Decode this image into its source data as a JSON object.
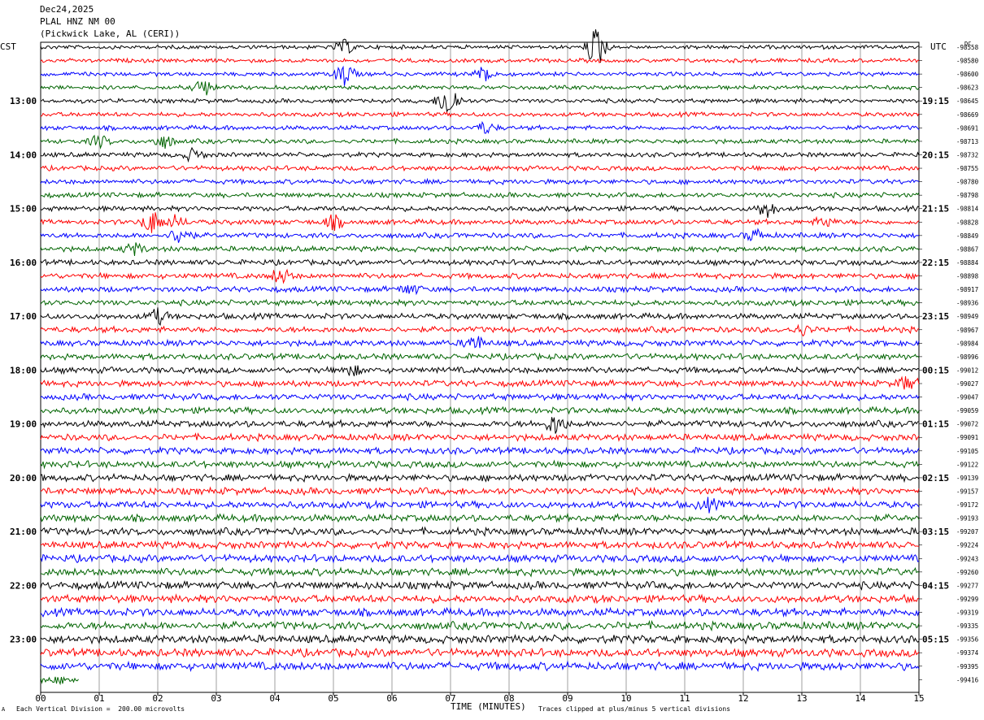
{
  "header": {
    "date": "Dec24,2025",
    "station": "PLAL HNZ NM 00",
    "location": "(Pickwick Lake, AL (CERI))"
  },
  "left_tz": "CST",
  "right_tz": "UTC",
  "right_unit": "DC",
  "footer": {
    "scale_note": "Each Vertical Division =  200.00 microvolts",
    "x_title": "TIME (MINUTES)",
    "clip_note": "Traces clipped at plus/minus 5 vertical divisions",
    "logo": "A"
  },
  "chart_data": {
    "type": "line",
    "title": "PLAL HNZ NM 00",
    "xlabel": "TIME (MINUTES)",
    "xlim": [
      0,
      15
    ],
    "x_ticks": [
      "00",
      "01",
      "02",
      "03",
      "04",
      "05",
      "06",
      "07",
      "08",
      "09",
      "10",
      "11",
      "12",
      "13",
      "14",
      "15"
    ],
    "grid": true,
    "trace_colors": [
      "#000000",
      "#ff0000",
      "#0000ff",
      "#006400"
    ],
    "left_hour_labels": [
      "13:00",
      "14:00",
      "15:00",
      "16:00",
      "17:00",
      "18:00",
      "19:00",
      "20:00",
      "21:00",
      "22:00",
      "23:00"
    ],
    "right_hour_labels": [
      "19:15",
      "20:15",
      "21:15",
      "22:15",
      "23:15",
      "00:15",
      "01:15",
      "02:15",
      "03:15",
      "04:15",
      "05:15"
    ],
    "hour_label_first_row": 4,
    "dc_offsets": [
      "-98558",
      "-98580",
      "-98600",
      "-98623",
      "-98645",
      "-98669",
      "-98691",
      "-98713",
      "-98732",
      "-98755",
      "-98780",
      "-98798",
      "-98814",
      "-98828",
      "-98849",
      "-98867",
      "-98884",
      "-98898",
      "-98917",
      "-98936",
      "-98949",
      "-98967",
      "-98984",
      "-98996",
      "-99012",
      "-99027",
      "-99047",
      "-99059",
      "-99072",
      "-99091",
      "-99105",
      "-99122",
      "-99139",
      "-99157",
      "-99172",
      "-99193",
      "-99207",
      "-99224",
      "-99243",
      "-99260",
      "-99277",
      "-99299",
      "-99319",
      "-99335",
      "-99356",
      "-99374",
      "-99395",
      "-99416"
    ],
    "num_traces": 48,
    "last_trace_end_minute": 0.65
  }
}
